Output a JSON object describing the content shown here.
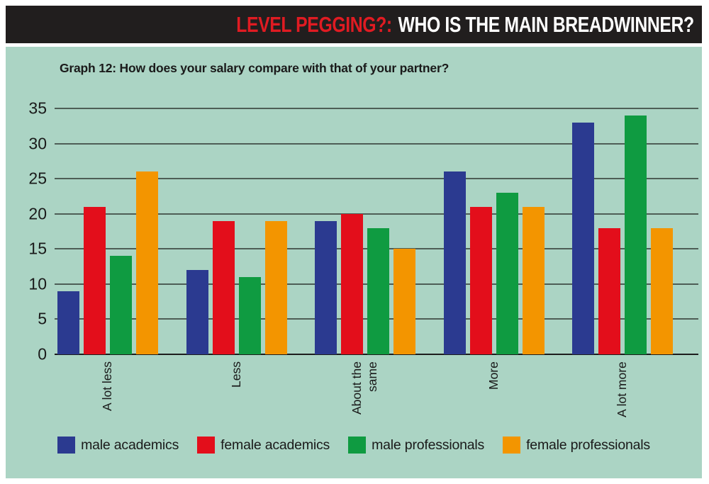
{
  "header": {
    "title_red": "LEVEL PEGGING?:",
    "title_main": "WHO IS THE MAIN BREADWINNER?"
  },
  "colors": {
    "banner_bg": "#211e1e",
    "banner_red": "#e01b22",
    "panel_bg": "#abd4c4",
    "gridline": "#4e5e56",
    "axis": "#1d1d1d",
    "text": "#1a1a1a"
  },
  "chart_data": {
    "type": "bar",
    "title": "Graph 12: How does your salary compare with that of your partner?",
    "categories": [
      "A lot less",
      "Less",
      "About the\nsame",
      "More",
      "A lot more"
    ],
    "series": [
      {
        "name": "male academics",
        "color": "#2b3a90",
        "values": [
          9,
          12,
          19,
          26,
          33
        ]
      },
      {
        "name": "female academics",
        "color": "#e30e1b",
        "values": [
          21,
          19,
          20,
          21,
          18
        ]
      },
      {
        "name": "male professionals",
        "color": "#0f9b41",
        "values": [
          14,
          11,
          18,
          23,
          34
        ]
      },
      {
        "name": "female professionals",
        "color": "#f39500",
        "values": [
          26,
          19,
          15,
          21,
          18
        ]
      }
    ],
    "xlabel": "",
    "ylabel": "",
    "ylim": [
      0,
      35
    ],
    "yticks": [
      0,
      5,
      10,
      15,
      20,
      25,
      30,
      35
    ],
    "grid": true,
    "legend_position": "bottom"
  }
}
